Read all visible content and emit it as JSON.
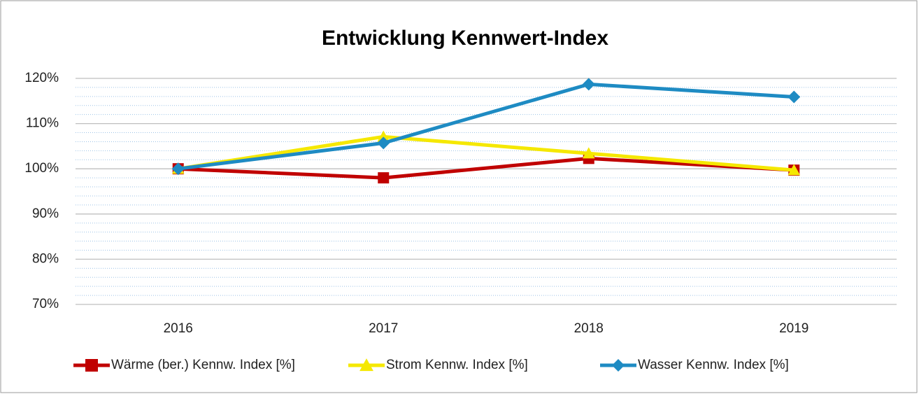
{
  "chart_data": {
    "type": "line",
    "title": "Entwicklung Kennwert-Index",
    "categories": [
      "2016",
      "2017",
      "2018",
      "2019"
    ],
    "series": [
      {
        "name": "Wärme (ber.) Kennw. Index [%]",
        "color": "#c00000",
        "marker": "square",
        "values": [
          100,
          98.0,
          102.3,
          99.7
        ]
      },
      {
        "name": "Strom Kennw. Index [%]",
        "color": "#f5e800",
        "marker": "triangle",
        "values": [
          100,
          107.1,
          103.4,
          99.7
        ]
      },
      {
        "name": "Wasser Kennw. Index [%]",
        "color": "#1e8bc3",
        "marker": "diamond",
        "values": [
          100,
          105.7,
          118.7,
          115.9
        ]
      }
    ],
    "ylim": [
      70,
      120
    ],
    "yticks": [
      {
        "value": 70,
        "label": "70%"
      },
      {
        "value": 80,
        "label": "80%"
      },
      {
        "value": 90,
        "label": "90%"
      },
      {
        "value": 100,
        "label": "100%"
      },
      {
        "value": 110,
        "label": "110%"
      },
      {
        "value": 120,
        "label": "120%"
      }
    ],
    "grid": true,
    "minor_grid": true,
    "legend": "bottom"
  }
}
